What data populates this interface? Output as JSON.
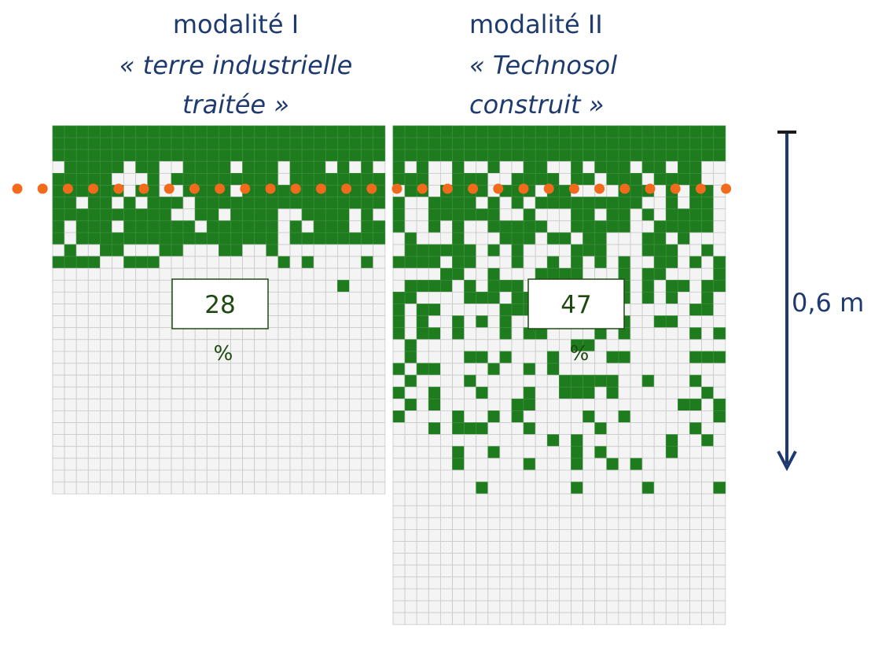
{
  "panels": [
    {
      "title": "modalité I",
      "subtitle": [
        "« terre industrielle",
        "traitée »"
      ],
      "value": "28",
      "unit": "%"
    },
    {
      "title": "modalité II",
      "subtitle": [
        "« Technosol",
        "construit »"
      ],
      "value": "47",
      "unit": "%"
    }
  ],
  "depth_label": "0,6 m"
}
